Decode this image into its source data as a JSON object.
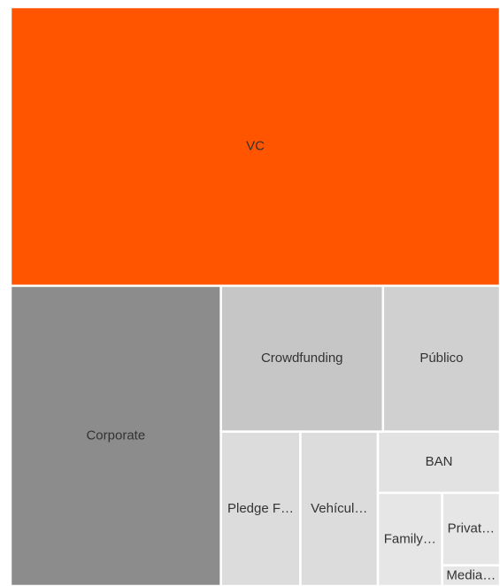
{
  "chart_data": {
    "type": "treemap",
    "categories": [
      "VC",
      "Corporate",
      "Crowdfunding",
      "Público",
      "Pledge F…",
      "Vehícul…",
      "BAN",
      "Family…",
      "Privat…",
      "Media…"
    ],
    "values": [
      45.6,
      21.1,
      7.9,
      5.7,
      4.1,
      4.0,
      2.5,
      2.0,
      1.4,
      0.4
    ],
    "colors": [
      "#ff5500",
      "#8c8c8c",
      "#c6c6c6",
      "#d0d0d0",
      "#dcdcdc",
      "#dcdcdc",
      "#e2e2e2",
      "#e6e6e6",
      "#e6e6e6",
      "#e6e6e6"
    ]
  }
}
